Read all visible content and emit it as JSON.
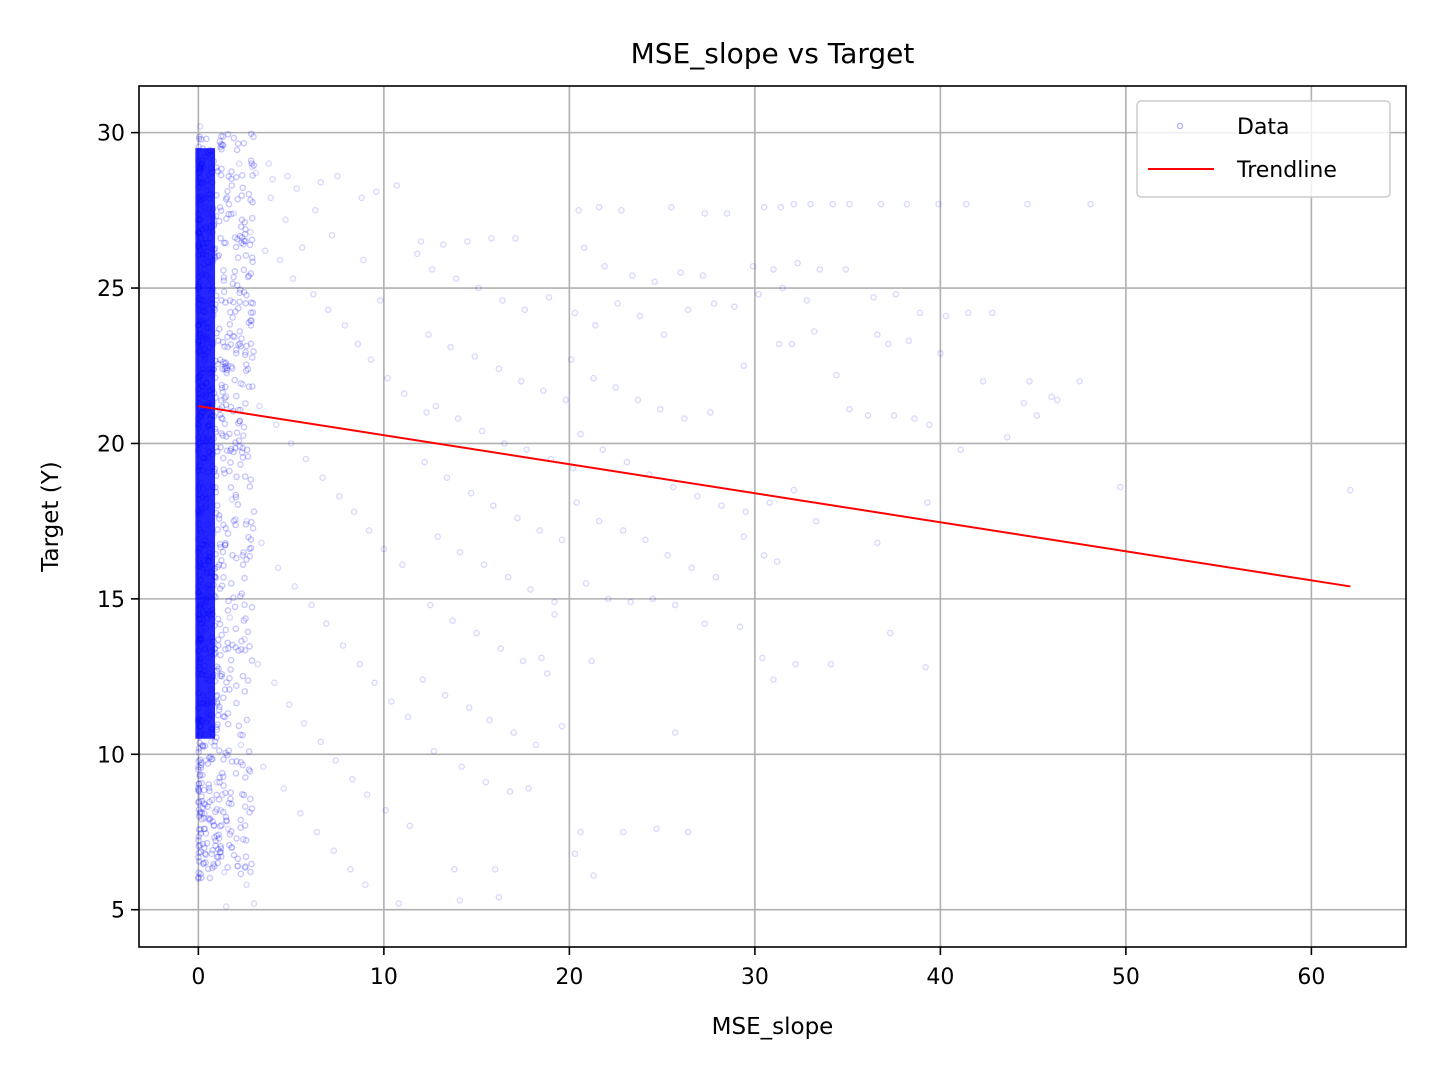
{
  "chart_data": {
    "type": "scatter",
    "title": "MSE_slope vs Target",
    "xlabel": "MSE_slope",
    "ylabel": "Target (Y)",
    "xlim": [
      -3.2,
      65.1
    ],
    "ylim": [
      3.8,
      31.5
    ],
    "xticks": [
      0,
      10,
      20,
      30,
      40,
      50,
      60
    ],
    "yticks": [
      5,
      10,
      15,
      20,
      25,
      30
    ],
    "grid": true,
    "legend_position": "top-right",
    "series": [
      {
        "name": "Data",
        "kind": "scatter",
        "color": "#0000ff",
        "opacity": 0.15,
        "marker": "circle-hollow",
        "points": [
          [
            0.1,
            30.2
          ],
          [
            0.2,
            29.1
          ],
          [
            0.3,
            28.4
          ],
          [
            0.1,
            27.5
          ],
          [
            0.4,
            26.9
          ],
          [
            0.2,
            26.1
          ],
          [
            0.5,
            25.4
          ],
          [
            0.3,
            24.6
          ],
          [
            0.1,
            23.9
          ],
          [
            0.6,
            23.1
          ],
          [
            0.2,
            22.4
          ],
          [
            0.4,
            21.6
          ],
          [
            0.1,
            20.9
          ],
          [
            0.7,
            20.1
          ],
          [
            0.3,
            19.4
          ],
          [
            0.5,
            18.6
          ],
          [
            0.2,
            17.9
          ],
          [
            0.8,
            17.1
          ],
          [
            0.4,
            16.4
          ],
          [
            0.1,
            15.6
          ],
          [
            0.6,
            14.9
          ],
          [
            0.3,
            14.1
          ],
          [
            0.9,
            13.4
          ],
          [
            0.2,
            12.6
          ],
          [
            0.5,
            11.9
          ],
          [
            0.1,
            11.1
          ],
          [
            0.7,
            10.4
          ],
          [
            0.4,
            9.8
          ],
          [
            1.0,
            9.1
          ],
          [
            1.3,
            8.7
          ],
          [
            1.2,
            8.2
          ],
          [
            1.6,
            7.6
          ],
          [
            1.8,
            7.0
          ],
          [
            2.1,
            6.4
          ],
          [
            1.4,
            6.2
          ],
          [
            2.6,
            5.8
          ],
          [
            3.0,
            5.2
          ],
          [
            1.5,
            5.1
          ],
          [
            2.2,
            29.0
          ],
          [
            3.1,
            28.7
          ],
          [
            4.0,
            28.5
          ],
          [
            5.3,
            28.2
          ],
          [
            6.6,
            28.4
          ],
          [
            7.5,
            28.6
          ],
          [
            8.8,
            27.9
          ],
          [
            9.6,
            28.1
          ],
          [
            10.7,
            28.3
          ],
          [
            1.9,
            27.4
          ],
          [
            2.8,
            26.8
          ],
          [
            3.6,
            26.2
          ],
          [
            4.4,
            25.9
          ],
          [
            5.1,
            25.3
          ],
          [
            6.2,
            24.8
          ],
          [
            7.0,
            24.3
          ],
          [
            7.9,
            23.8
          ],
          [
            8.6,
            23.2
          ],
          [
            9.3,
            22.7
          ],
          [
            10.2,
            22.1
          ],
          [
            11.1,
            21.6
          ],
          [
            12.3,
            21.0
          ],
          [
            1.6,
            22.5
          ],
          [
            2.4,
            21.9
          ],
          [
            3.3,
            21.2
          ],
          [
            4.2,
            20.6
          ],
          [
            5.0,
            20.0
          ],
          [
            5.8,
            19.5
          ],
          [
            6.7,
            18.9
          ],
          [
            7.6,
            18.3
          ],
          [
            8.4,
            17.8
          ],
          [
            9.2,
            17.2
          ],
          [
            10.0,
            16.6
          ],
          [
            11.0,
            16.1
          ],
          [
            1.8,
            18.2
          ],
          [
            2.6,
            17.5
          ],
          [
            3.4,
            16.8
          ],
          [
            4.3,
            16.0
          ],
          [
            5.2,
            15.4
          ],
          [
            6.1,
            14.8
          ],
          [
            6.9,
            14.2
          ],
          [
            7.8,
            13.5
          ],
          [
            8.7,
            12.9
          ],
          [
            9.5,
            12.3
          ],
          [
            10.4,
            11.7
          ],
          [
            11.3,
            11.2
          ],
          [
            1.7,
            14.4
          ],
          [
            2.5,
            13.7
          ],
          [
            3.2,
            12.9
          ],
          [
            4.1,
            12.3
          ],
          [
            4.9,
            11.6
          ],
          [
            5.7,
            11.0
          ],
          [
            6.6,
            10.4
          ],
          [
            7.4,
            9.8
          ],
          [
            8.3,
            9.2
          ],
          [
            9.1,
            8.7
          ],
          [
            10.1,
            8.2
          ],
          [
            11.4,
            7.7
          ],
          [
            2.3,
            10.3
          ],
          [
            3.5,
            9.6
          ],
          [
            4.6,
            8.9
          ],
          [
            5.5,
            8.1
          ],
          [
            6.4,
            7.5
          ],
          [
            7.3,
            6.9
          ],
          [
            8.2,
            6.3
          ],
          [
            9.0,
            5.8
          ],
          [
            10.8,
            5.2
          ],
          [
            12.0,
            26.5
          ],
          [
            13.2,
            26.4
          ],
          [
            14.5,
            26.5
          ],
          [
            15.8,
            26.6
          ],
          [
            17.1,
            26.6
          ],
          [
            12.6,
            25.6
          ],
          [
            13.9,
            25.3
          ],
          [
            15.1,
            25.0
          ],
          [
            16.4,
            24.6
          ],
          [
            17.6,
            24.3
          ],
          [
            18.9,
            24.7
          ],
          [
            12.4,
            23.5
          ],
          [
            13.6,
            23.1
          ],
          [
            14.9,
            22.8
          ],
          [
            16.2,
            22.4
          ],
          [
            17.4,
            22.0
          ],
          [
            18.6,
            21.7
          ],
          [
            19.8,
            21.4
          ],
          [
            12.8,
            21.2
          ],
          [
            14.0,
            20.8
          ],
          [
            15.3,
            20.4
          ],
          [
            16.5,
            20.0
          ],
          [
            17.7,
            19.8
          ],
          [
            19.0,
            19.5
          ],
          [
            20.2,
            19.2
          ],
          [
            12.2,
            19.4
          ],
          [
            13.4,
            18.9
          ],
          [
            14.7,
            18.4
          ],
          [
            15.9,
            18.0
          ],
          [
            17.2,
            17.6
          ],
          [
            18.4,
            17.2
          ],
          [
            19.6,
            16.9
          ],
          [
            12.9,
            17.0
          ],
          [
            14.1,
            16.5
          ],
          [
            15.4,
            16.1
          ],
          [
            16.7,
            15.7
          ],
          [
            17.9,
            15.3
          ],
          [
            19.2,
            14.9
          ],
          [
            12.5,
            14.8
          ],
          [
            13.7,
            14.3
          ],
          [
            15.0,
            13.9
          ],
          [
            16.3,
            13.4
          ],
          [
            17.5,
            13.0
          ],
          [
            18.8,
            12.6
          ],
          [
            12.1,
            12.4
          ],
          [
            13.3,
            11.9
          ],
          [
            14.6,
            11.5
          ],
          [
            15.7,
            11.1
          ],
          [
            17.0,
            10.7
          ],
          [
            18.2,
            10.3
          ],
          [
            12.7,
            10.1
          ],
          [
            14.2,
            9.6
          ],
          [
            15.5,
            9.1
          ],
          [
            16.8,
            8.8
          ],
          [
            17.8,
            8.9
          ],
          [
            13.8,
            6.3
          ],
          [
            14.1,
            5.3
          ],
          [
            16.0,
            6.3
          ],
          [
            16.2,
            5.4
          ],
          [
            20.5,
            27.5
          ],
          [
            21.6,
            27.6
          ],
          [
            22.8,
            27.5
          ],
          [
            25.5,
            27.6
          ],
          [
            27.3,
            27.4
          ],
          [
            28.5,
            27.4
          ],
          [
            30.5,
            27.6
          ],
          [
            31.4,
            27.6
          ],
          [
            32.1,
            27.7
          ],
          [
            33.0,
            27.7
          ],
          [
            34.2,
            27.7
          ],
          [
            35.1,
            27.7
          ],
          [
            36.8,
            27.7
          ],
          [
            38.2,
            27.7
          ],
          [
            39.9,
            27.7
          ],
          [
            41.4,
            27.7
          ],
          [
            44.7,
            27.7
          ],
          [
            48.1,
            27.7
          ],
          [
            20.8,
            26.3
          ],
          [
            21.9,
            25.7
          ],
          [
            23.4,
            25.4
          ],
          [
            24.6,
            25.2
          ],
          [
            26.0,
            25.5
          ],
          [
            27.2,
            25.4
          ],
          [
            29.9,
            25.7
          ],
          [
            31.0,
            25.6
          ],
          [
            32.3,
            25.8
          ],
          [
            33.5,
            25.6
          ],
          [
            34.9,
            25.6
          ],
          [
            20.3,
            24.2
          ],
          [
            21.4,
            23.8
          ],
          [
            22.6,
            24.5
          ],
          [
            23.8,
            24.1
          ],
          [
            25.1,
            23.5
          ],
          [
            26.4,
            24.3
          ],
          [
            27.8,
            24.5
          ],
          [
            28.9,
            24.4
          ],
          [
            30.2,
            24.8
          ],
          [
            31.5,
            25.0
          ],
          [
            32.8,
            24.6
          ],
          [
            36.4,
            24.7
          ],
          [
            37.6,
            24.8
          ],
          [
            38.9,
            24.2
          ],
          [
            40.3,
            24.1
          ],
          [
            41.5,
            24.2
          ],
          [
            42.8,
            24.2
          ],
          [
            20.1,
            22.7
          ],
          [
            21.3,
            22.1
          ],
          [
            22.5,
            21.8
          ],
          [
            23.7,
            21.4
          ],
          [
            24.9,
            21.1
          ],
          [
            26.2,
            20.8
          ],
          [
            27.6,
            21.0
          ],
          [
            29.4,
            22.5
          ],
          [
            31.3,
            23.2
          ],
          [
            32.0,
            23.2
          ],
          [
            33.2,
            23.6
          ],
          [
            34.4,
            22.2
          ],
          [
            36.6,
            23.5
          ],
          [
            37.2,
            23.2
          ],
          [
            38.3,
            23.3
          ],
          [
            40.0,
            22.9
          ],
          [
            42.3,
            22.0
          ],
          [
            44.8,
            22.0
          ],
          [
            46.0,
            21.5
          ],
          [
            47.5,
            22.0
          ],
          [
            20.6,
            20.3
          ],
          [
            21.8,
            19.8
          ],
          [
            23.1,
            19.4
          ],
          [
            24.3,
            19.0
          ],
          [
            25.6,
            18.6
          ],
          [
            26.9,
            18.3
          ],
          [
            28.2,
            18.0
          ],
          [
            29.5,
            17.8
          ],
          [
            30.8,
            18.1
          ],
          [
            32.1,
            18.5
          ],
          [
            35.1,
            21.1
          ],
          [
            36.1,
            20.9
          ],
          [
            37.5,
            20.9
          ],
          [
            38.6,
            20.8
          ],
          [
            39.4,
            20.6
          ],
          [
            41.1,
            19.8
          ],
          [
            43.6,
            20.2
          ],
          [
            44.5,
            21.3
          ],
          [
            45.2,
            20.9
          ],
          [
            46.3,
            21.4
          ],
          [
            20.4,
            18.1
          ],
          [
            21.6,
            17.5
          ],
          [
            22.9,
            17.2
          ],
          [
            24.1,
            16.9
          ],
          [
            25.3,
            16.4
          ],
          [
            26.6,
            16.0
          ],
          [
            27.9,
            15.7
          ],
          [
            29.4,
            17.0
          ],
          [
            30.5,
            16.4
          ],
          [
            31.2,
            16.2
          ],
          [
            33.3,
            17.5
          ],
          [
            36.6,
            16.8
          ],
          [
            39.3,
            18.1
          ],
          [
            49.7,
            18.6
          ],
          [
            62.1,
            18.5
          ],
          [
            20.9,
            15.5
          ],
          [
            22.1,
            15.0
          ],
          [
            23.3,
            14.9
          ],
          [
            24.5,
            15.0
          ],
          [
            25.7,
            14.8
          ],
          [
            27.3,
            14.2
          ],
          [
            29.2,
            14.1
          ],
          [
            37.3,
            13.9
          ],
          [
            39.2,
            12.8
          ],
          [
            30.4,
            13.1
          ],
          [
            31.0,
            12.4
          ],
          [
            32.2,
            12.9
          ],
          [
            34.1,
            12.9
          ],
          [
            25.7,
            10.7
          ],
          [
            21.2,
            13.0
          ],
          [
            20.6,
            7.5
          ],
          [
            20.3,
            6.8
          ],
          [
            21.3,
            6.1
          ],
          [
            22.9,
            7.5
          ],
          [
            24.7,
            7.6
          ],
          [
            26.4,
            7.5
          ],
          [
            19.6,
            10.9
          ],
          [
            18.5,
            13.1
          ],
          [
            19.2,
            14.5
          ],
          [
            11.8,
            26.1
          ],
          [
            9.8,
            24.6
          ],
          [
            8.9,
            25.9
          ],
          [
            7.2,
            26.7
          ],
          [
            6.3,
            27.5
          ],
          [
            5.6,
            26.3
          ],
          [
            4.7,
            27.2
          ],
          [
            3.9,
            27.9
          ],
          [
            2.9,
            28.9
          ],
          [
            3.8,
            29.0
          ],
          [
            4.8,
            28.6
          ]
        ]
      },
      {
        "name": "Trendline",
        "kind": "line",
        "color": "#ff0000",
        "x": [
          0.0,
          62.1
        ],
        "y": [
          21.2,
          15.4
        ]
      }
    ]
  }
}
